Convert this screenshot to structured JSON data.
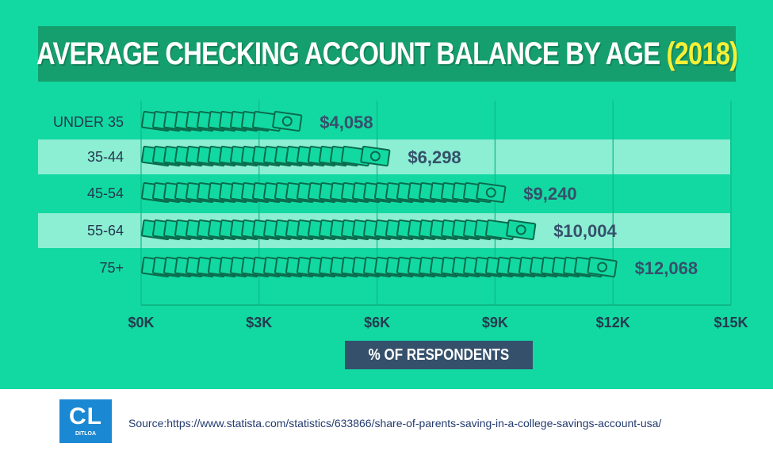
{
  "title": {
    "main": "AVERAGE CHECKING ACCOUNT BALANCE BY AGE",
    "year": "(2018)"
  },
  "colors": {
    "background": "#12d9a2",
    "banner": "#159f6e",
    "year": "#f6ef38",
    "band": "#8ceed2",
    "bill_fill": "#12d9a2",
    "bill_stroke": "#0a6b4c",
    "value_text": "#35506b",
    "axis_label_box": "#35506b",
    "logo": "#1a88d2"
  },
  "chart_data": {
    "type": "bar",
    "orientation": "horizontal",
    "categories": [
      "UNDER 35",
      "35-44",
      "45-54",
      "55-64",
      "75+"
    ],
    "values": [
      4058,
      6298,
      9240,
      10004,
      12068
    ],
    "value_labels": [
      "$4,058",
      "$6,298",
      "$9,240",
      "$10,004",
      "$12,068"
    ],
    "xlim": [
      0,
      15000
    ],
    "x_ticks": [
      0,
      3000,
      6000,
      9000,
      12000,
      15000
    ],
    "x_tick_labels": [
      "$0K",
      "$3K",
      "$6K",
      "$9K",
      "$12K",
      "$15K"
    ],
    "xlabel": "% OF RESPONDENTS",
    "ylabel": "",
    "grid": true
  },
  "footer": {
    "logo_letters": "CL",
    "logo_sub": "DITLOA",
    "source": "Source:https://www.statista.com/statistics/633866/share-of-parents-saving-in-a-college-savings-account-usa/"
  }
}
